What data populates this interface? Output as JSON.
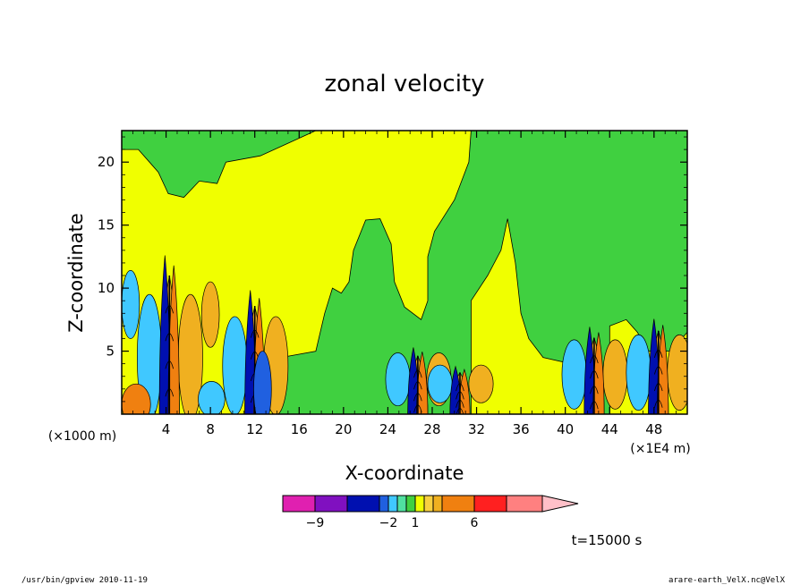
{
  "chart_data": {
    "type": "heatmap",
    "title": "zonal velocity",
    "xlabel": "X-coordinate",
    "ylabel": "Z-coordinate",
    "x_unit_label": "(×1000 m)",
    "x_scale_label": "(×1E4 m)",
    "x_ticks": [
      "4",
      "8",
      "12",
      "16",
      "20",
      "24",
      "28",
      "32",
      "36",
      "40",
      "44",
      "48"
    ],
    "y_ticks": [
      "5",
      "10",
      "15",
      "20"
    ],
    "xlim": [
      0,
      51
    ],
    "ylim": [
      0,
      22.5
    ],
    "time_label": "t=15000 s",
    "colorbar": {
      "labels": [
        {
          "text": "−9",
          "level": -9
        },
        {
          "text": "−2",
          "level": -2
        },
        {
          "text": "1",
          "level": 1
        },
        {
          "text": "6",
          "level": 6
        }
      ],
      "colors": [
        "#e020b0",
        "#8010c0",
        "#0010b0",
        "#2060e0",
        "#40c8ff",
        "#50e0a0",
        "#40d040",
        "#f0ff00",
        "#f8d040",
        "#f0b020",
        "#f08010",
        "#ff2020",
        "#ff8080",
        "#ffc0c8"
      ]
    },
    "field_levels": {
      "background": "#f0ff00",
      "positive_weak": "#40d040",
      "positive_mid": "#f0b020",
      "positive_strong": "#f08010",
      "negative_weak": "#40c8ff",
      "negative_mid": "#2060e0",
      "negative_strong": "#0010b0"
    },
    "plumes_x": [
      4.3,
      12,
      26.7,
      30.5,
      42.6,
      48.4
    ]
  },
  "footer": {
    "left": "/usr/bin/gpview  2010-11-19",
    "right": "arare-earth_VelX.nc@VelX"
  }
}
